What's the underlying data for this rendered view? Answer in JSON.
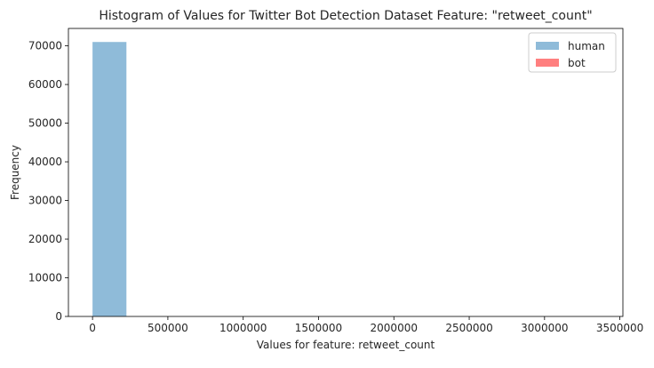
{
  "chart_data": {
    "type": "bar",
    "title": "Histogram of Values for Twitter Bot Detection Dataset Feature: \"retweet_count\"",
    "xlabel": "Values for feature: retweet_count",
    "ylabel": "Frequency",
    "xlim": [
      -160000,
      3520000
    ],
    "ylim": [
      0,
      74500
    ],
    "xticks": [
      0,
      500000,
      1000000,
      1500000,
      2000000,
      2500000,
      3000000,
      3500000
    ],
    "xtick_labels": [
      "0",
      "500000",
      "1000000",
      "1500000",
      "2000000",
      "2500000",
      "3000000",
      "3500000"
    ],
    "yticks": [
      0,
      10000,
      20000,
      30000,
      40000,
      50000,
      60000,
      70000
    ],
    "ytick_labels": [
      "0",
      "10000",
      "20000",
      "30000",
      "40000",
      "50000",
      "60000",
      "70000"
    ],
    "grid": false,
    "legend_position": "top-right",
    "series": [
      {
        "name": "human",
        "color": "#1f77b4",
        "opacity": 0.5,
        "bins": [
          {
            "x0": 0,
            "x1": 225000,
            "count": 71000
          }
        ]
      },
      {
        "name": "bot",
        "color": "#ff0000",
        "opacity": 0.5,
        "bins": []
      }
    ]
  }
}
